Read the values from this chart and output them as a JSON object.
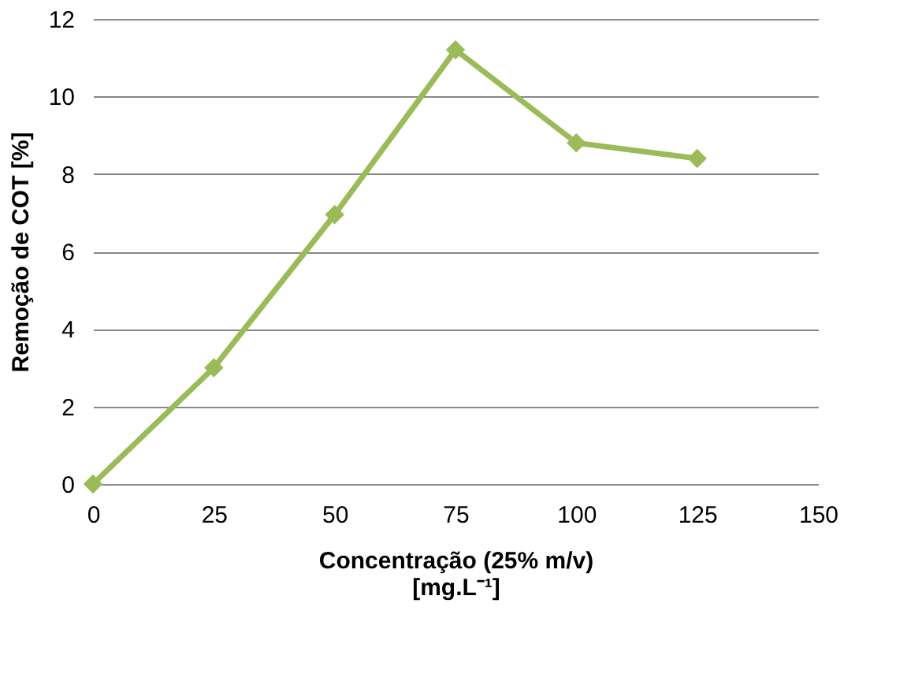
{
  "chart_data": {
    "type": "line",
    "xlabel": "Concentração (25% m/v)\n[mg.L⁻¹]",
    "ylabel": "Remoção de COT [%]",
    "x": [
      0,
      25,
      50,
      75,
      100,
      125
    ],
    "series": [
      {
        "color": "#9bbb59",
        "values": [
          0,
          3,
          6.95,
          11.2,
          8.8,
          8.4
        ]
      }
    ],
    "xlim": [
      0,
      150
    ],
    "xticks": [
      0,
      25,
      50,
      75,
      100,
      125,
      150
    ],
    "ylim": [
      0,
      12
    ],
    "yticks": [
      0,
      2,
      4,
      6,
      8,
      10,
      12
    ],
    "grid": "y",
    "marker": "diamond",
    "line_style": "solid"
  }
}
